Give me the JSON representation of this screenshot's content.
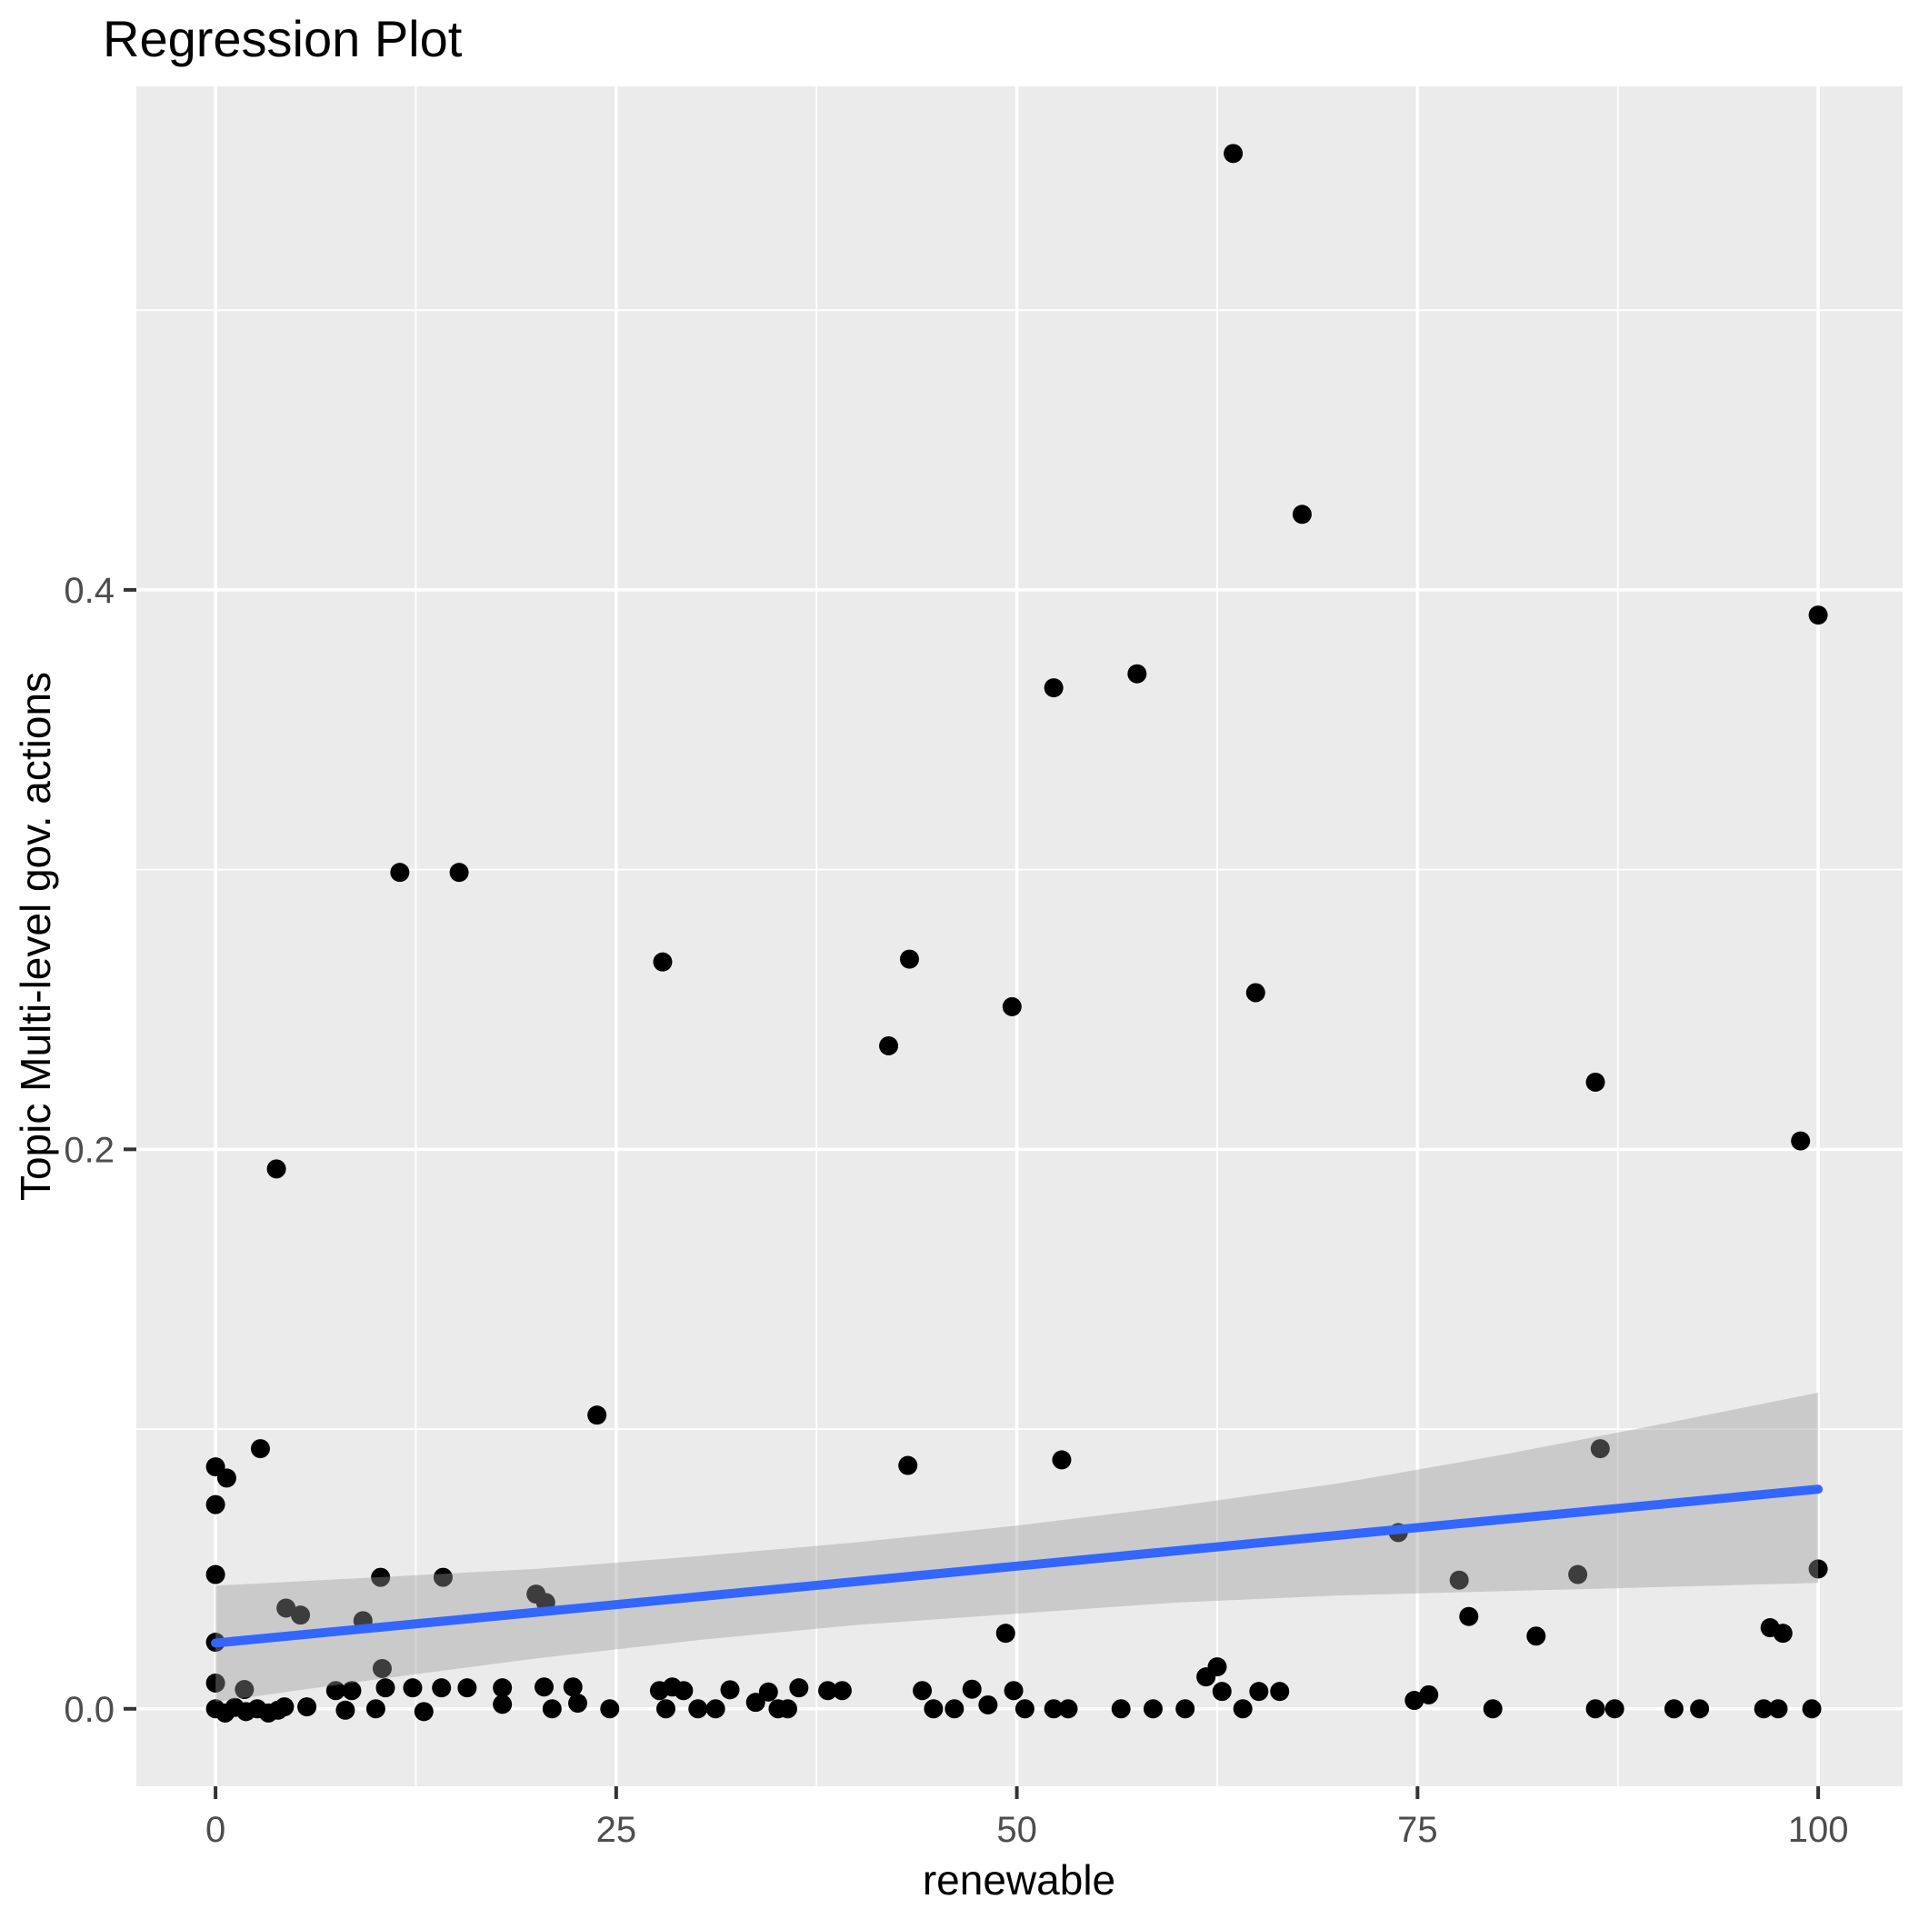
{
  "title": "Regression Plot",
  "x_axis": {
    "label": "renewable",
    "ticks": [
      {
        "value": 0,
        "label": "0"
      },
      {
        "value": 25,
        "label": "25"
      },
      {
        "value": 50,
        "label": "50"
      },
      {
        "value": 75,
        "label": "75"
      },
      {
        "value": 100,
        "label": "100"
      }
    ],
    "minor_ticks": [
      12.5,
      37.5,
      62.5,
      87.5
    ]
  },
  "y_axis": {
    "label": "Topic Multi-level gov. actions",
    "ticks": [
      {
        "value": 0.0,
        "label": "0.0"
      },
      {
        "value": 0.2,
        "label": "0.2"
      },
      {
        "value": 0.4,
        "label": "0.4"
      }
    ],
    "minor_ticks": [
      0.1,
      0.3,
      0.5
    ]
  },
  "colors": {
    "panel_background": "#EBEBEB",
    "grid": "#FFFFFF",
    "point": "#000000",
    "regression_line": "#3366FF",
    "confidence_band_fill": "#999999",
    "confidence_band_opacity": 0.4,
    "tick_label": "#4D4D4D",
    "tick_mark": "#333333",
    "title_color": "#000000"
  },
  "chart_data": {
    "type": "scatter",
    "title": "Regression Plot",
    "xlabel": "renewable",
    "ylabel": "Topic Multi-level gov. actions",
    "xlim": [
      -4.94,
      105.27
    ],
    "ylim": [
      -0.0277,
      0.58
    ],
    "grid": "on",
    "legend": "none",
    "points": [
      [
        63.5,
        0.556
      ],
      [
        67.8,
        0.427
      ],
      [
        100,
        0.391
      ],
      [
        57.5,
        0.37
      ],
      [
        52.3,
        0.365
      ],
      [
        11.5,
        0.299
      ],
      [
        15.2,
        0.299
      ],
      [
        43.3,
        0.268
      ],
      [
        27.9,
        0.267
      ],
      [
        64.9,
        0.256
      ],
      [
        49.7,
        0.251
      ],
      [
        42,
        0.237
      ],
      [
        86.1,
        0.224
      ],
      [
        98.9,
        0.203
      ],
      [
        3.8,
        0.193
      ],
      [
        23.8,
        0.105
      ],
      [
        86.4,
        0.093
      ],
      [
        2.8,
        0.093
      ],
      [
        52.8,
        0.089
      ],
      [
        43.2,
        0.087
      ],
      [
        0,
        0.0865
      ],
      [
        0.7,
        0.0825
      ],
      [
        0,
        0.073
      ],
      [
        73.8,
        0.063
      ],
      [
        0,
        0.048
      ],
      [
        10.3,
        0.047
      ],
      [
        14.2,
        0.047
      ],
      [
        77.6,
        0.046
      ],
      [
        85,
        0.048
      ],
      [
        100,
        0.05
      ],
      [
        20,
        0.041
      ],
      [
        20.6,
        0.038
      ],
      [
        4.4,
        0.036
      ],
      [
        5.3,
        0.0335
      ],
      [
        78.2,
        0.033
      ],
      [
        9.2,
        0.0315
      ],
      [
        97,
        0.029
      ],
      [
        97.8,
        0.027
      ],
      [
        82.4,
        0.026
      ],
      [
        49.3,
        0.027
      ],
      [
        0,
        0.0238
      ],
      [
        62.5,
        0.015
      ],
      [
        10.4,
        0.0144
      ],
      [
        61.8,
        0.0114
      ],
      [
        0,
        0.0092
      ],
      [
        28.5,
        0.0078
      ],
      [
        20.5,
        0.0078
      ],
      [
        22.3,
        0.0078
      ],
      [
        10.6,
        0.0075
      ],
      [
        12.3,
        0.0075
      ],
      [
        14.1,
        0.0075
      ],
      [
        15.7,
        0.0075
      ],
      [
        17.9,
        0.0075
      ],
      [
        36.4,
        0.0075
      ],
      [
        47.2,
        0.007
      ],
      [
        1.8,
        0.0069
      ],
      [
        32.1,
        0.0068
      ],
      [
        7.5,
        0.0065
      ],
      [
        8.5,
        0.0065
      ],
      [
        27.7,
        0.0065
      ],
      [
        29.2,
        0.0065
      ],
      [
        38.2,
        0.0065
      ],
      [
        39.1,
        0.0065
      ],
      [
        44.1,
        0.0065
      ],
      [
        49.8,
        0.0065
      ],
      [
        62.8,
        0.0062
      ],
      [
        65.1,
        0.0062
      ],
      [
        66.4,
        0.0062
      ],
      [
        34.5,
        0.006
      ],
      [
        75.7,
        0.005
      ],
      [
        74.8,
        0.003
      ],
      [
        33.7,
        0.0023
      ],
      [
        22.6,
        0.002
      ],
      [
        17.9,
        0.0016
      ],
      [
        48.2,
        0.0014
      ],
      [
        4.3,
        0.0007
      ],
      [
        5.7,
        0.0007
      ],
      [
        0,
        0
      ],
      [
        0.6,
        -0.0015
      ],
      [
        1.2,
        0.0005
      ],
      [
        1.9,
        -0.001
      ],
      [
        2.6,
        0
      ],
      [
        3.3,
        -0.0015
      ],
      [
        3.9,
        -0.0005
      ],
      [
        8.1,
        -0.0005
      ],
      [
        10,
        0
      ],
      [
        13,
        -0.001
      ],
      [
        21,
        0
      ],
      [
        24.6,
        0
      ],
      [
        28.1,
        0
      ],
      [
        30.1,
        0
      ],
      [
        31.2,
        0
      ],
      [
        35.1,
        0
      ],
      [
        35.7,
        0
      ],
      [
        44.8,
        0
      ],
      [
        46.1,
        0
      ],
      [
        50.5,
        0
      ],
      [
        52.3,
        0
      ],
      [
        53.2,
        0
      ],
      [
        56.5,
        0
      ],
      [
        58.5,
        0
      ],
      [
        60.5,
        0
      ],
      [
        64.1,
        0
      ],
      [
        79.7,
        0
      ],
      [
        86.1,
        0
      ],
      [
        87.3,
        0
      ],
      [
        91,
        0
      ],
      [
        92.6,
        0
      ],
      [
        96.6,
        0
      ],
      [
        97.5,
        0
      ],
      [
        99.6,
        0
      ]
    ],
    "regression_line": {
      "x": [
        0,
        100
      ],
      "y": [
        0.0235,
        0.0785
      ]
    },
    "confidence_band": {
      "x": [
        0,
        10,
        20,
        30,
        40,
        50,
        60,
        70,
        80,
        90,
        100
      ],
      "upper": [
        0.044,
        0.047,
        0.05,
        0.0545,
        0.0595,
        0.0655,
        0.0725,
        0.0805,
        0.0905,
        0.1015,
        0.113
      ],
      "lower": [
        0.0025,
        0.0105,
        0.018,
        0.0245,
        0.03,
        0.034,
        0.038,
        0.0405,
        0.042,
        0.0435,
        0.045
      ]
    }
  }
}
